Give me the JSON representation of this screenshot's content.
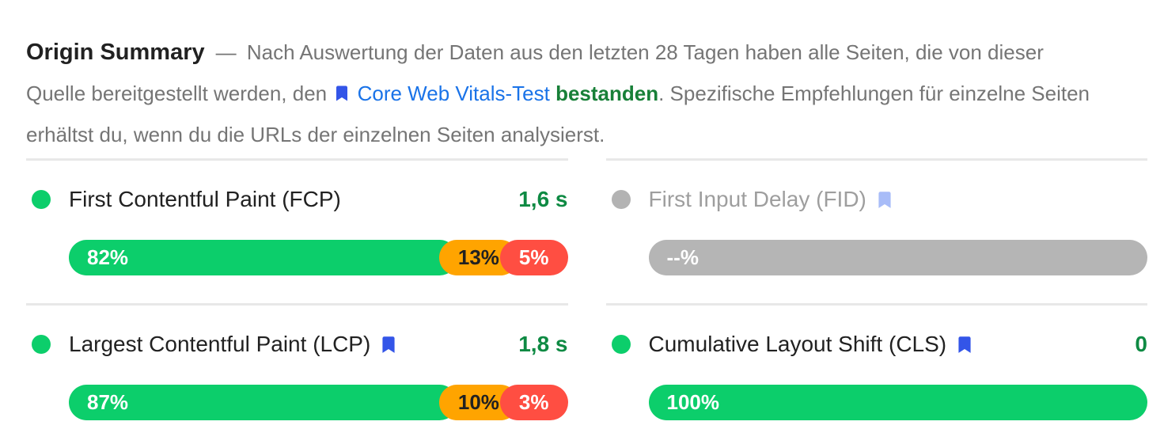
{
  "header": {
    "title": "Origin Summary",
    "dash": "—",
    "intro_before_link": "Nach Auswertung der Daten aus den letzten 28 Tagen haben alle Seiten, die von dieser Quelle bereitgestellt werden, den",
    "link_label": "Core Web Vitals-Test",
    "passed_label": "bestanden",
    "intro_after_link": ". Spezifische Empfehlungen für einzelne Seiten erhältst du, wenn du die URLs der einzelnen Seiten analysierst."
  },
  "metrics": [
    {
      "id": "fcp",
      "label": "First Contentful Paint (FCP)",
      "value": "1,6 s",
      "status": "good",
      "has_bookmark": false,
      "distribution": [
        {
          "label": "82%",
          "pct": 82,
          "type": "good"
        },
        {
          "label": "13%",
          "pct": 13,
          "type": "average"
        },
        {
          "label": "5%",
          "pct": 5,
          "type": "poor"
        }
      ]
    },
    {
      "id": "fid",
      "label": "First Input Delay (FID)",
      "value": "",
      "status": "not-available",
      "has_bookmark": true,
      "distribution": [
        {
          "label": "--%",
          "pct": 100,
          "type": "na"
        }
      ]
    },
    {
      "id": "lcp",
      "label": "Largest Contentful Paint (LCP)",
      "value": "1,8 s",
      "status": "good",
      "has_bookmark": true,
      "distribution": [
        {
          "label": "87%",
          "pct": 87,
          "type": "good"
        },
        {
          "label": "10%",
          "pct": 10,
          "type": "average"
        },
        {
          "label": "3%",
          "pct": 3,
          "type": "poor"
        }
      ]
    },
    {
      "id": "cls",
      "label": "Cumulative Layout Shift (CLS)",
      "value": "0",
      "status": "good",
      "has_bookmark": true,
      "distribution": [
        {
          "label": "100%",
          "pct": 100,
          "type": "good"
        }
      ]
    }
  ],
  "colors": {
    "good": "#0CCE6B",
    "average": "#FFA400",
    "poor": "#FF4E42",
    "not_available": "#B5B5B5",
    "value_green": "#0E8A43",
    "passed_green": "#188038",
    "link_blue": "#1A73E8",
    "bookmark_blue": "#3355E8",
    "bookmark_muted": "#A8BCF8"
  }
}
